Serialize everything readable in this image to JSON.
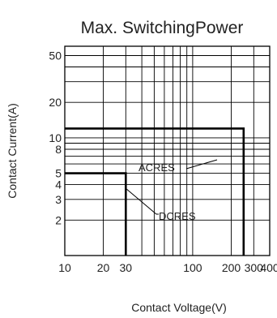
{
  "chart_data": {
    "type": "line",
    "title": "Max. SwitchingPower",
    "xlabel": "Contact Voltage(V)",
    "ylabel": "Contact Current(A)",
    "x_scale": "log",
    "y_scale": "log",
    "xlim": [
      10,
      400
    ],
    "ylim": [
      1,
      60
    ],
    "x_ticks": [
      10,
      20,
      30,
      100,
      200,
      300,
      400
    ],
    "y_ticks": [
      2,
      3,
      4,
      5,
      8,
      10,
      20,
      50
    ],
    "x_grid": [
      10,
      20,
      30,
      40,
      50,
      60,
      70,
      80,
      90,
      100,
      200,
      300,
      400
    ],
    "y_grid": [
      1,
      2,
      3,
      4,
      5,
      6,
      7,
      8,
      9,
      10,
      20,
      30,
      40,
      50,
      60
    ],
    "grid": true,
    "series": [
      {
        "name": "ACRES",
        "x": [
          10,
          250,
          250
        ],
        "y": [
          12,
          12,
          1
        ]
      },
      {
        "name": "DCRES",
        "x": [
          10,
          30,
          30
        ],
        "y": [
          5,
          5,
          1
        ]
      }
    ],
    "annotations": [
      {
        "text": "ACRES",
        "series": "ACRES"
      },
      {
        "text": "DCRES",
        "series": "DCRES"
      }
    ],
    "colors": {
      "line": "#000000",
      "grid": "#000000",
      "text": "#222222"
    }
  }
}
